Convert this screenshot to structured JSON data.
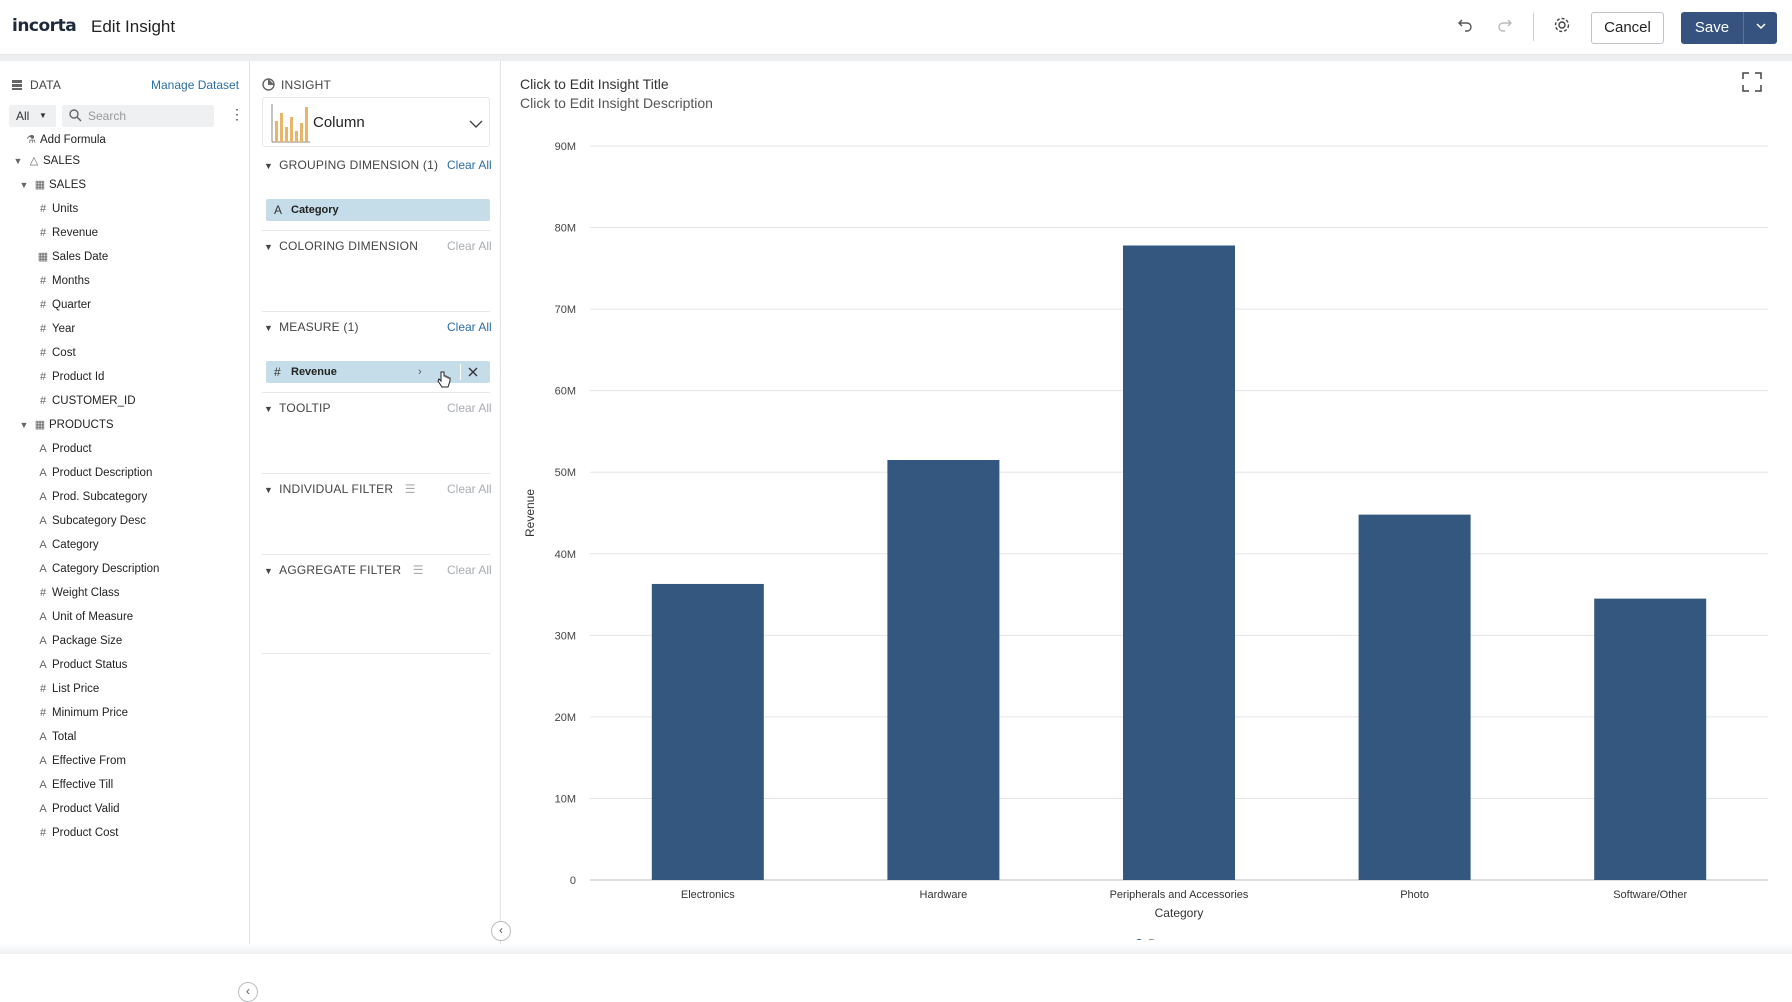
{
  "header": {
    "logo": "incorta",
    "title": "Edit Insight",
    "cancel_label": "Cancel",
    "save_label": "Save"
  },
  "data_panel": {
    "title": "DATA",
    "manage_link": "Manage Dataset",
    "filter_value": "All",
    "search_placeholder": "Search",
    "add_formula": "Add Formula",
    "root": "SALES",
    "tables": [
      {
        "name": "SALES",
        "fields": [
          {
            "label": "Units",
            "icon": "number-icon"
          },
          {
            "label": "Revenue",
            "icon": "number-icon"
          },
          {
            "label": "Sales Date",
            "icon": "calendar-icon"
          },
          {
            "label": "Months",
            "icon": "number-icon"
          },
          {
            "label": "Quarter",
            "icon": "number-icon"
          },
          {
            "label": "Year",
            "icon": "number-icon"
          },
          {
            "label": "Cost",
            "icon": "number-icon"
          },
          {
            "label": "Product Id",
            "icon": "number-icon"
          },
          {
            "label": "CUSTOMER_ID",
            "icon": "number-icon"
          }
        ]
      },
      {
        "name": "PRODUCTS",
        "fields": [
          {
            "label": "Product",
            "icon": "text-icon"
          },
          {
            "label": "Product Description",
            "icon": "text-icon"
          },
          {
            "label": "Prod. Subcategory",
            "icon": "text-icon"
          },
          {
            "label": "Subcategory Desc",
            "icon": "text-icon"
          },
          {
            "label": "Category",
            "icon": "text-icon"
          },
          {
            "label": "Category Description",
            "icon": "text-icon"
          },
          {
            "label": "Weight Class",
            "icon": "number-icon"
          },
          {
            "label": "Unit of Measure",
            "icon": "text-icon"
          },
          {
            "label": "Package Size",
            "icon": "text-icon"
          },
          {
            "label": "Product Status",
            "icon": "text-icon"
          },
          {
            "label": "List Price",
            "icon": "number-icon"
          },
          {
            "label": "Minimum Price",
            "icon": "number-icon"
          },
          {
            "label": "Total",
            "icon": "text-icon"
          },
          {
            "label": "Effective From",
            "icon": "text-icon"
          },
          {
            "label": "Effective Till",
            "icon": "text-icon"
          },
          {
            "label": "Product Valid",
            "icon": "text-icon"
          },
          {
            "label": "Product Cost",
            "icon": "number-icon"
          }
        ]
      }
    ]
  },
  "insight_panel": {
    "title": "INSIGHT",
    "viz_type": "Column",
    "grouping": {
      "label": "GROUPING DIMENSION (1)",
      "clear": "Clear All",
      "pill": "Category"
    },
    "coloring": {
      "label": "COLORING DIMENSION",
      "clear": "Clear All"
    },
    "measure": {
      "label": "MEASURE (1)",
      "clear": "Clear All",
      "pill": "Revenue"
    },
    "tooltip": {
      "label": "TOOLTIP",
      "clear": "Clear All"
    },
    "individual_filter": {
      "label": "INDIVIDUAL FILTER",
      "clear": "Clear All"
    },
    "aggregate_filter": {
      "label": "AGGREGATE FILTER",
      "clear": "Clear All"
    }
  },
  "canvas": {
    "title": "Click to Edit Insight Title",
    "description": "Click to Edit Insight Description"
  },
  "colors": {
    "bar": "#33577f",
    "accent": "#35537e",
    "pill": "#c5dde8",
    "link": "#2d6ea8"
  },
  "chart_data": {
    "type": "bar",
    "categories": [
      "Electronics",
      "Hardware",
      "Peripherals and Accessories",
      "Photo",
      "Software/Other"
    ],
    "series": [
      {
        "name": "Revenue",
        "values": [
          36.3,
          51.5,
          77.8,
          44.8,
          34.5
        ]
      }
    ],
    "xlabel": "Category",
    "ylabel": "Revenue",
    "ylim": [
      0,
      90
    ],
    "yticks": [
      "0",
      "10M",
      "20M",
      "30M",
      "40M",
      "50M",
      "60M",
      "70M",
      "80M",
      "90M"
    ],
    "legend": "bottom",
    "grid": true
  }
}
